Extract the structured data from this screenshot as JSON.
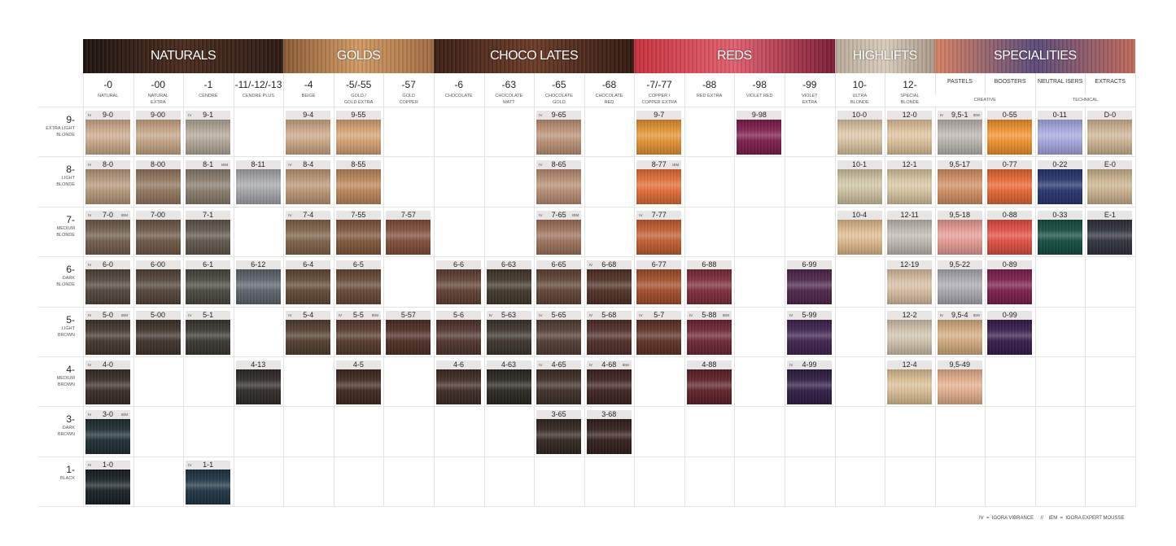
{
  "groups": [
    {
      "label": "NATURALS",
      "span": 4,
      "colors": [
        "#1c120e",
        "#4a2a1c",
        "#2a1a12"
      ]
    },
    {
      "label": "GOLDS",
      "span": 3,
      "colors": [
        "#8a5a34",
        "#d09a64",
        "#a06a40"
      ]
    },
    {
      "label": "CHOCO LATES",
      "span": 4,
      "colors": [
        "#3a1e14",
        "#6a3a26",
        "#2e1810"
      ]
    },
    {
      "label": "REDS",
      "span": 4,
      "colors": [
        "#c8303c",
        "#e0606e",
        "#7a1c34"
      ]
    },
    {
      "label": "HIGHLIFTS",
      "span": 2,
      "colors": [
        "#b8aa98",
        "#d8ccbc",
        "#a89886"
      ]
    },
    {
      "label": "SPECIALITIES",
      "span": 4,
      "colors": [
        "#d88060",
        "#5a4a7a",
        "#c06858"
      ]
    }
  ],
  "columns": [
    {
      "code": "-0",
      "name": "NATURAL"
    },
    {
      "code": "-00",
      "name": "NATURAL\nEXTRA"
    },
    {
      "code": "-1",
      "name": "CENDRÉ"
    },
    {
      "code": "-11/-12/-13",
      "name": "CENDRÉ  PLUS"
    },
    {
      "code": "-4",
      "name": "BEIGE"
    },
    {
      "code": "-5/-55",
      "name": "GOLD /\nGOLD EXTRA"
    },
    {
      "code": "-57",
      "name": "GOLD\nCOPPER"
    },
    {
      "code": "-6",
      "name": "CHOCOLATE"
    },
    {
      "code": "-63",
      "name": "CHOCOLATE\nMATT"
    },
    {
      "code": "-65",
      "name": "CHOCOLATE\nGOLD"
    },
    {
      "code": "-68",
      "name": "CHOCOLATE\nRED"
    },
    {
      "code": "-7/-77",
      "name": "COPPER /\nCOPPER EXTRA"
    },
    {
      "code": "-88",
      "name": "RED EXTRA"
    },
    {
      "code": "-98",
      "name": "VIOLET RED"
    },
    {
      "code": "-99",
      "name": "VIOLET\nEXTRA"
    },
    {
      "code": "10-",
      "name": "ULTRA\nBLONDE"
    },
    {
      "code": "12-",
      "name": "SPECIAL\nBLONDE"
    }
  ],
  "specialities": [
    "PASTELS",
    "BOOSTERS",
    "NEUTRAL ISERS",
    "EXTRACTS"
  ],
  "subheads": [
    "CREATIVE",
    "TECHNICAL"
  ],
  "marks": {
    "iv": "IV",
    "iem": "IEM"
  },
  "rows": [
    {
      "level": "9-",
      "name": "EXTRA LIGHT\nBLONDE",
      "cells": {
        "0": {
          "code": "9-0",
          "iv": true,
          "color": "#c9a888"
        },
        "1": {
          "code": "9-00",
          "color": "#c4a282"
        },
        "2": {
          "code": "9-1",
          "iv": true,
          "color": "#b0a596"
        },
        "4": {
          "code": "9-4",
          "color": "#caa583"
        },
        "5": {
          "code": "9-55",
          "color": "#d2a070"
        },
        "9": {
          "code": "9-65",
          "iv": true,
          "color": "#b98f73"
        },
        "11": {
          "code": "9-7",
          "color": "#e3902f"
        },
        "13": {
          "code": "9-98",
          "color": "#7a1848"
        },
        "15": {
          "code": "10-0",
          "color": "#d9c2a0"
        },
        "16": {
          "code": "12-0",
          "color": "#dcc09a"
        },
        "17": {
          "code": "9,5-1",
          "iv": true,
          "iem": true,
          "color": "#b8b3ae"
        },
        "18": {
          "code": "0-55",
          "color": "#ef8f2a"
        },
        "19": {
          "code": "0-11",
          "color": "#a3a6dc"
        },
        "20": {
          "code": "D-0",
          "color": "#cdb291"
        }
      }
    },
    {
      "level": "8-",
      "name": "LIGHT\nBLONDE",
      "cells": {
        "0": {
          "code": "8-0",
          "iv": true,
          "color": "#b39678"
        },
        "1": {
          "code": "8-00",
          "color": "#8f735a"
        },
        "2": {
          "code": "8-1",
          "iem": true,
          "color": "#86796a"
        },
        "3": {
          "code": "8-11",
          "color": "#a3a4a8"
        },
        "4": {
          "code": "8-4",
          "iv": true,
          "color": "#b99472"
        },
        "5": {
          "code": "8-55",
          "color": "#b98457"
        },
        "9": {
          "code": "8-65",
          "iv": true,
          "color": "#b68b70"
        },
        "11": {
          "code": "8-77",
          "iem": true,
          "color": "#e06a32"
        },
        "15": {
          "code": "10-1",
          "color": "#cdc1a0"
        },
        "16": {
          "code": "12-1",
          "color": "#d6c39e"
        },
        "17": {
          "code": "9,5-17",
          "color": "#d08d60"
        },
        "18": {
          "code": "0-77",
          "color": "#e5642e"
        },
        "19": {
          "code": "0-22",
          "color": "#22306a"
        },
        "20": {
          "code": "E-0",
          "color": "#c9b08b"
        }
      }
    },
    {
      "level": "7-",
      "name": "MEDIUM\nBLONDE",
      "cells": {
        "0": {
          "code": "7-0",
          "iv": true,
          "iem": true,
          "color": "#6e5a48"
        },
        "1": {
          "code": "7-00",
          "color": "#6a5442"
        },
        "2": {
          "code": "7-1",
          "color": "#5d5448"
        },
        "4": {
          "code": "7-4",
          "iv": true,
          "color": "#7c5f45"
        },
        "5": {
          "code": "7-55",
          "color": "#7c5238"
        },
        "6": {
          "code": "7-57",
          "color": "#7e4a37"
        },
        "9": {
          "code": "7-65",
          "iv": true,
          "iem": true,
          "color": "#9b6f58"
        },
        "11": {
          "code": "7-77",
          "iv": true,
          "color": "#c05a2c"
        },
        "15": {
          "code": "10-4",
          "color": "#dcb88a"
        },
        "16": {
          "code": "12-11",
          "color": "#bdb8b0"
        },
        "17": {
          "code": "9,5-18",
          "color": "#e39a92"
        },
        "18": {
          "code": "0-88",
          "color": "#e04b3f"
        },
        "19": {
          "code": "0-33",
          "color": "#0e4a3c"
        },
        "20": {
          "code": "E-1",
          "color": "#2a2e36"
        }
      }
    },
    {
      "level": "6-",
      "name": "DARK\nBLONDE",
      "cells": {
        "0": {
          "code": "6-0",
          "iv": true,
          "color": "#4d4237"
        },
        "1": {
          "code": "6-00",
          "color": "#4f4034"
        },
        "2": {
          "code": "6-1",
          "color": "#46443c"
        },
        "3": {
          "code": "6-12",
          "color": "#5a6068"
        },
        "4": {
          "code": "6-4",
          "color": "#5e4631"
        },
        "5": {
          "code": "6-5",
          "color": "#644431"
        },
        "7": {
          "code": "6-6",
          "color": "#5e3c2e"
        },
        "8": {
          "code": "6-63",
          "color": "#3d3427"
        },
        "9": {
          "code": "6-65",
          "color": "#5e4032"
        },
        "10": {
          "code": "6-68",
          "iv": true,
          "color": "#4e2c22"
        },
        "11": {
          "code": "6-77",
          "color": "#a04a26"
        },
        "12": {
          "code": "6-88",
          "color": "#7a2836"
        },
        "14": {
          "code": "6-99",
          "color": "#4a2148"
        },
        "16": {
          "code": "12-19",
          "color": "#d6bca0"
        },
        "17": {
          "code": "9,5-22",
          "color": "#a7a7ad"
        },
        "18": {
          "code": "0-89",
          "color": "#7a1a48"
        }
      }
    },
    {
      "level": "5-",
      "name": "LIGHT\nBROWN",
      "cells": {
        "0": {
          "code": "5-0",
          "iv": true,
          "iem": true,
          "color": "#3e3329"
        },
        "1": {
          "code": "5-00",
          "color": "#3b2f26"
        },
        "2": {
          "code": "5-1",
          "iv": true,
          "color": "#35332d"
        },
        "4": {
          "code": "5-4",
          "iv": true,
          "color": "#4e3a2b"
        },
        "5": {
          "code": "5-5",
          "iv": true,
          "iem": true,
          "color": "#523629"
        },
        "6": {
          "code": "5-57",
          "color": "#4a2a20"
        },
        "7": {
          "code": "5-6",
          "color": "#4d3029"
        },
        "8": {
          "code": "5-63",
          "iv": true,
          "color": "#38302a"
        },
        "9": {
          "code": "5-65",
          "iv": true,
          "color": "#4e3a30"
        },
        "10": {
          "code": "5-68",
          "iv": true,
          "color": "#4c2a25"
        },
        "11": {
          "code": "5-7",
          "iv": true,
          "color": "#5a2e20"
        },
        "12": {
          "code": "5-88",
          "iv": true,
          "iem": true,
          "color": "#6a2230"
        },
        "14": {
          "code": "5-99",
          "iv": true,
          "color": "#3a1e4a"
        },
        "16": {
          "code": "12-2",
          "color": "#cfc1aa"
        },
        "17": {
          "code": "9,5-4",
          "iv": true,
          "iem": true,
          "color": "#d2a97c"
        },
        "18": {
          "code": "0-99",
          "color": "#331848"
        }
      }
    },
    {
      "level": "4-",
      "name": "MEDIUM\nBROWN",
      "cells": {
        "0": {
          "code": "4-0",
          "iv": true,
          "color": "#352922"
        },
        "3": {
          "code": "4-13",
          "color": "#2a2624"
        },
        "5": {
          "code": "4-5",
          "color": "#3b241b"
        },
        "7": {
          "code": "4-6",
          "color": "#3a261f"
        },
        "8": {
          "code": "4-63",
          "color": "#26221c"
        },
        "9": {
          "code": "4-65",
          "iv": true,
          "color": "#3a2a22"
        },
        "10": {
          "code": "4-68",
          "iv": true,
          "iem": true,
          "color": "#3a1e1c"
        },
        "12": {
          "code": "4-88",
          "color": "#5a1c24"
        },
        "14": {
          "code": "4-99",
          "iv": true,
          "color": "#2a1840"
        },
        "16": {
          "code": "12-4",
          "color": "#d9bd92"
        },
        "17": {
          "code": "9,5-49",
          "color": "#e2ad8a"
        }
      }
    },
    {
      "level": "3-",
      "name": "DARK\nBROWN",
      "cells": {
        "0": {
          "code": "3-0",
          "iv": true,
          "iem": true,
          "color": "#1a2a2e"
        },
        "9": {
          "code": "3-65",
          "color": "#2e221c"
        },
        "10": {
          "code": "3-68",
          "color": "#2e1a18"
        }
      }
    },
    {
      "level": "1-",
      "name": "BLACK",
      "cells": {
        "0": {
          "code": "1-0",
          "iv": true,
          "color": "#141c20"
        },
        "2": {
          "code": "1-1",
          "iv": true,
          "color": "#1a3040"
        }
      }
    }
  ],
  "footer": "IV  =  IGORA VIBRANCE     //    IEM  =  IGORA EXPERT MOUSSE"
}
